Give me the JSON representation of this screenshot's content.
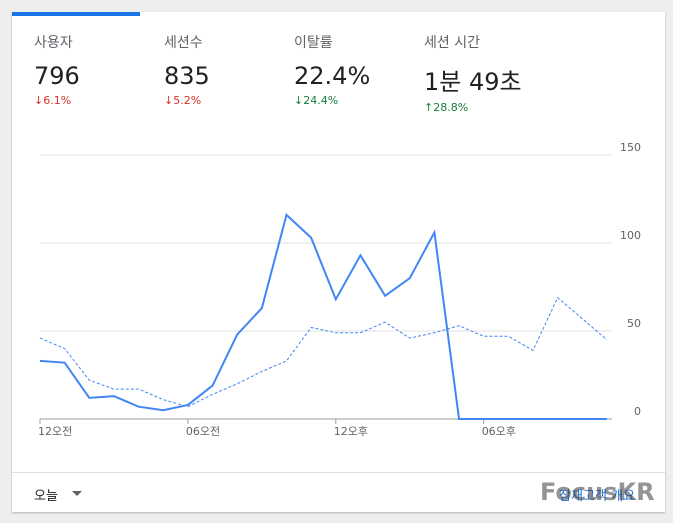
{
  "metrics": [
    {
      "label": "사용자",
      "value": "796",
      "change": "↓6.1%",
      "trend": "down-bad"
    },
    {
      "label": "세션수",
      "value": "835",
      "change": "↓5.2%",
      "trend": "down-bad"
    },
    {
      "label": "이탈률",
      "value": "22.4%",
      "change": "↓24.4%",
      "trend": "good"
    },
    {
      "label": "세션 시간",
      "value": "1분 49초",
      "change": "↑28.8%",
      "trend": "good"
    }
  ],
  "chart_data": {
    "type": "line",
    "categories": [
      "12오전",
      null,
      null,
      null,
      null,
      null,
      "06오전",
      null,
      null,
      null,
      null,
      null,
      "12오후",
      null,
      null,
      null,
      null,
      null,
      "06오후",
      null,
      null,
      null,
      null,
      null
    ],
    "series": [
      {
        "color": "#4285f4",
        "dashed": false,
        "values": [
          33,
          32,
          12,
          13,
          7,
          5,
          8,
          19,
          48,
          63,
          116,
          103,
          68,
          93,
          70,
          80,
          106,
          0,
          0,
          0,
          0,
          0,
          0,
          0
        ]
      },
      {
        "color": "#4285f4",
        "dashed": true,
        "values": [
          46,
          40,
          22,
          17,
          17,
          11,
          7,
          14,
          20,
          27,
          33,
          52,
          49,
          49,
          55,
          46,
          49,
          53,
          47,
          47,
          39,
          69,
          57,
          45
        ]
      }
    ],
    "ylim": [
      0,
      150
    ],
    "yticks": [
      0,
      50,
      100,
      150
    ],
    "grid": true
  },
  "footer": {
    "range": "오늘",
    "link": "잠재고객 개요"
  },
  "watermark": "FocusKR"
}
